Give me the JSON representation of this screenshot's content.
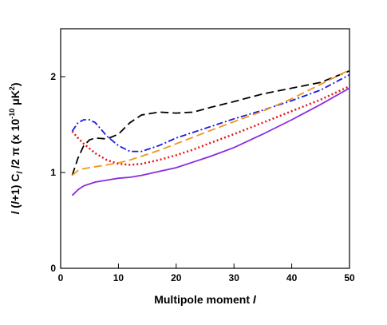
{
  "chart_data": {
    "type": "line",
    "xlabel": [
      "Multipole moment ",
      "l"
    ],
    "ylabel": [
      "l",
      " (",
      "l",
      "+1) C",
      "l",
      " /2 π  (x 10",
      "-10",
      " μK",
      "2",
      ")"
    ],
    "x": [
      2,
      3,
      4,
      5,
      6,
      8,
      10,
      12,
      14,
      17,
      20,
      23,
      26,
      30,
      35,
      40,
      45,
      50
    ],
    "series": [
      {
        "color": "#000000",
        "style": "dashed",
        "values": [
          0.97,
          1.15,
          1.28,
          1.34,
          1.36,
          1.35,
          1.4,
          1.52,
          1.6,
          1.63,
          1.62,
          1.63,
          1.68,
          1.74,
          1.82,
          1.88,
          1.94,
          2.06
        ]
      },
      {
        "color": "#1a1ae6",
        "style": "dashdot",
        "values": [
          1.43,
          1.52,
          1.55,
          1.55,
          1.52,
          1.38,
          1.28,
          1.22,
          1.22,
          1.28,
          1.36,
          1.42,
          1.48,
          1.56,
          1.65,
          1.75,
          1.86,
          2.02
        ]
      },
      {
        "color": "#f0961e",
        "style": "dashed",
        "values": [
          0.97,
          1.02,
          1.04,
          1.05,
          1.06,
          1.08,
          1.1,
          1.13,
          1.17,
          1.23,
          1.3,
          1.37,
          1.44,
          1.53,
          1.64,
          1.77,
          1.92,
          2.07
        ]
      },
      {
        "color": "#e61414",
        "style": "dotted",
        "values": [
          1.43,
          1.36,
          1.3,
          1.25,
          1.2,
          1.13,
          1.09,
          1.08,
          1.09,
          1.13,
          1.18,
          1.24,
          1.31,
          1.4,
          1.52,
          1.64,
          1.76,
          1.9
        ]
      },
      {
        "color": "#8a2be2",
        "style": "solid",
        "values": [
          0.76,
          0.82,
          0.86,
          0.88,
          0.9,
          0.92,
          0.94,
          0.95,
          0.97,
          1.01,
          1.05,
          1.11,
          1.17,
          1.26,
          1.4,
          1.55,
          1.71,
          1.88
        ]
      }
    ],
    "xlim": [
      0,
      50
    ],
    "xticks": [
      0,
      10,
      20,
      30,
      40,
      50
    ],
    "ylim": [
      0,
      2.5
    ],
    "yticks": [
      0,
      1,
      2
    ]
  }
}
